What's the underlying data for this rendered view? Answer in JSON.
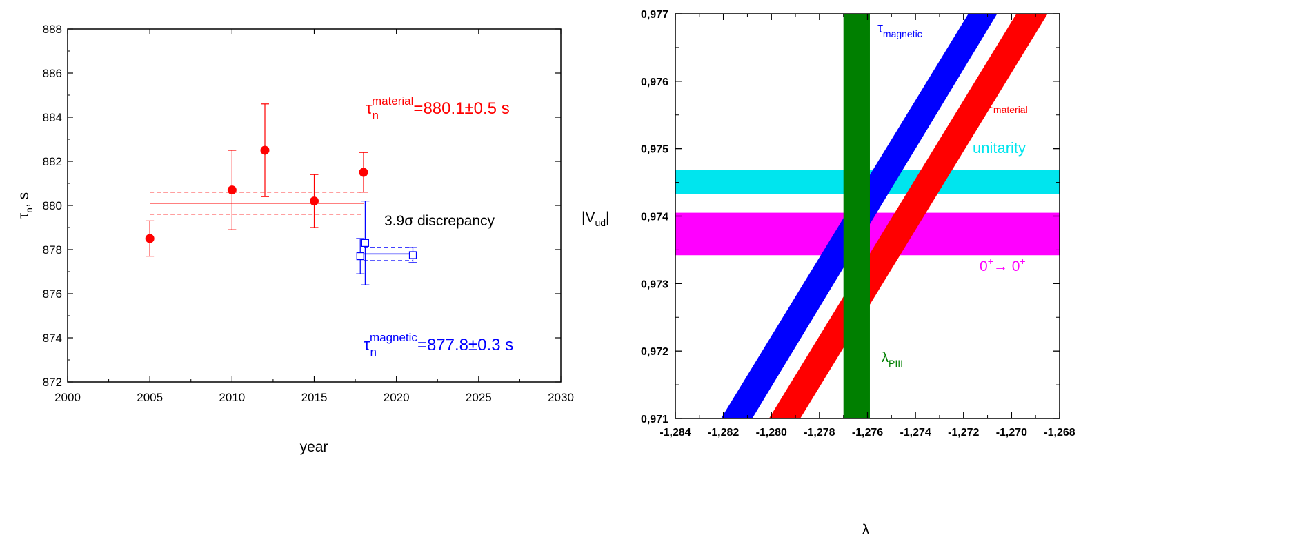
{
  "chart_data": [
    {
      "type": "scatter",
      "xlabel": "year",
      "ylabel_symbol": "τ",
      "ylabel_sub": "n",
      "ylabel_unit": ", s",
      "xlim": [
        2000,
        2030
      ],
      "ylim": [
        872,
        888
      ],
      "x_ticks": [
        "2000",
        "2005",
        "2010",
        "2015",
        "2020",
        "2025",
        "2030"
      ],
      "y_ticks": [
        "872",
        "874",
        "876",
        "878",
        "880",
        "882",
        "884",
        "886",
        "888"
      ],
      "colors": {
        "material": "#ff0000",
        "magnetic": "#0000ff"
      },
      "series": [
        {
          "name": "material",
          "marker": "filled-circle",
          "points": [
            {
              "x": 2005,
              "y": 878.5,
              "yerr_low": 0.8,
              "yerr_high": 0.8
            },
            {
              "x": 2010,
              "y": 880.7,
              "yerr_low": 1.8,
              "yerr_high": 1.8
            },
            {
              "x": 2012,
              "y": 882.5,
              "yerr_low": 2.1,
              "yerr_high": 2.1
            },
            {
              "x": 2015,
              "y": 880.2,
              "yerr_low": 1.2,
              "yerr_high": 1.2
            },
            {
              "x": 2018,
              "y": 881.5,
              "yerr_low": 0.9,
              "yerr_high": 0.9
            }
          ],
          "average": {
            "value": 880.1,
            "err": 0.5,
            "x_range": [
              2005,
              2018
            ]
          }
        },
        {
          "name": "magnetic",
          "marker": "open-square",
          "points": [
            {
              "x": 2017.8,
              "y": 877.7,
              "yerr_low": 0.8,
              "yerr_high": 0.8
            },
            {
              "x": 2018.1,
              "y": 878.3,
              "yerr_low": 1.9,
              "yerr_high": 1.9
            },
            {
              "x": 2021,
              "y": 877.75,
              "yerr_low": 0.34,
              "yerr_high": 0.34
            }
          ],
          "average": {
            "value": 877.8,
            "err": 0.3,
            "x_range": [
              2018,
              2021
            ]
          }
        }
      ],
      "annotations": {
        "material": {
          "sym": "τ",
          "sub": "n",
          "sup": "material",
          "rest": "=880.1±0.5 s"
        },
        "magnetic": {
          "sym": "τ",
          "sub": "n",
          "sup": "magnetic",
          "rest": "=877.8±0.3 s"
        },
        "discrepancy": {
          "num": "3.9",
          "sym": "σ",
          "rest": " discrepancy"
        }
      }
    },
    {
      "type": "area",
      "xlabel_symbol": "λ",
      "ylabel": "|V",
      "ylabel_sub": "ud",
      "ylabel_close": "|",
      "xlim": [
        -1.284,
        -1.268
      ],
      "ylim": [
        0.971,
        0.977
      ],
      "x_ticks": [
        "-1,284",
        "-1,282",
        "-1,280",
        "-1,278",
        "-1,276",
        "-1,274",
        "-1,272",
        "-1,270",
        "-1,268"
      ],
      "y_ticks": [
        "0,971",
        "0,972",
        "0,973",
        "0,974",
        "0,975",
        "0,976",
        "0,977"
      ],
      "bands": [
        {
          "name": "unitarity",
          "kind": "horizontal",
          "y_range": [
            0.97433,
            0.97468
          ],
          "color": "#00e5ee"
        },
        {
          "name": "0+→0+",
          "kind": "horizontal",
          "y_range": [
            0.97342,
            0.97405
          ],
          "color": "#ff00ff"
        },
        {
          "name": "λPIII",
          "kind": "vertical",
          "x_range": [
            -1.277,
            -1.2759
          ],
          "color": "#007f00"
        },
        {
          "name": "τmagnetic",
          "kind": "diagonal",
          "bottom_x_range": [
            -1.2821,
            -1.2808
          ],
          "top_x_range": [
            -1.2718,
            -1.2706
          ],
          "color": "#0000ff"
        },
        {
          "name": "τmaterial",
          "kind": "diagonal",
          "bottom_x_range": [
            -1.2801,
            -1.2788
          ],
          "top_x_range": [
            -1.2698,
            -1.2685
          ],
          "color": "#ff0000"
        }
      ],
      "labels": {
        "unitarity": {
          "text": "unitarity"
        },
        "superallowed": {
          "base": "0",
          "sup1": "+",
          "arrow": "→ 0",
          "sup2": "+"
        },
        "lambda": {
          "sym": "λ",
          "sub": "PIII"
        },
        "tau_magnetic": {
          "sym": "τ",
          "sub": "magnetic"
        },
        "tau_material": {
          "sym": "τ",
          "sub": "material"
        }
      }
    }
  ]
}
